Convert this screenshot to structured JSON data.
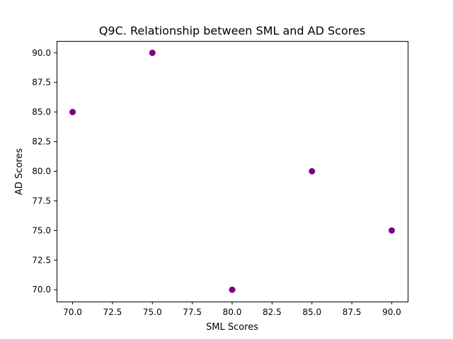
{
  "chart_data": {
    "type": "scatter",
    "title": "Q9C. Relationship between SML and AD Scores",
    "xlabel": "SML Scores",
    "ylabel": "AD Scores",
    "x": [
      70,
      75,
      80,
      85,
      90
    ],
    "y": [
      85,
      90,
      70,
      80,
      75
    ],
    "xlim": [
      69.0,
      91.0
    ],
    "ylim": [
      69.0,
      91.0
    ],
    "xticks": [
      "70.0",
      "72.5",
      "75.0",
      "77.5",
      "80.0",
      "82.5",
      "85.0",
      "87.5",
      "90.0"
    ],
    "yticks": [
      "70.0",
      "72.5",
      "75.0",
      "77.5",
      "80.0",
      "82.5",
      "85.0",
      "87.5",
      "90.0"
    ],
    "grid": false,
    "marker_color": "#800080"
  }
}
